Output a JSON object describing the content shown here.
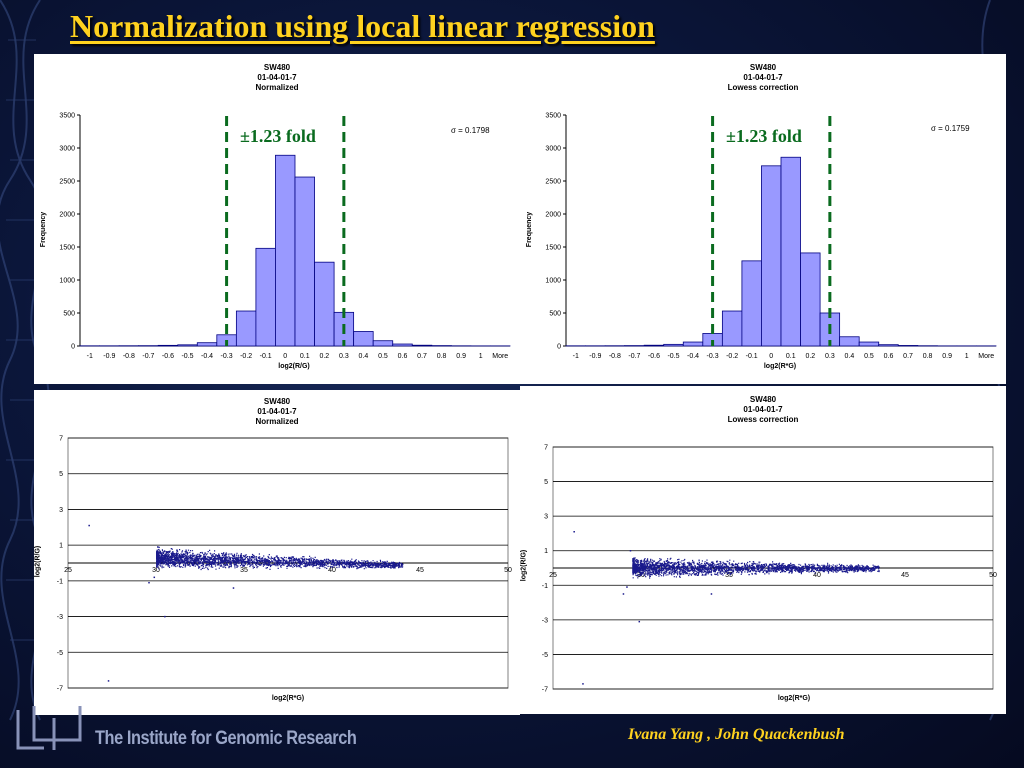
{
  "slide": {
    "title": "Normalization using local linear regression",
    "institute": "The Institute for Genomic Research",
    "authors": "Ivana Yang , John Quackenbush"
  },
  "colors": {
    "background": "#0b163a",
    "title": "#ffd21f",
    "bar_fill": "#9999ff",
    "bar_stroke": "#000080",
    "fold_line": "#0a6b1f",
    "point": "#1a1a8c"
  },
  "chart_data": [
    {
      "type": "bar",
      "title_lines": [
        "SW480",
        "01-04-01-7",
        "Normalized"
      ],
      "xlabel": "log2(R/G)",
      "ylabel": "Frequency",
      "categories": [
        "-1",
        "-0.9",
        "-0.8",
        "-0.7",
        "-0.6",
        "-0.5",
        "-0.4",
        "-0.3",
        "-0.2",
        "-0.1",
        "0",
        "0.1",
        "0.2",
        "0.3",
        "0.4",
        "0.5",
        "0.6",
        "0.7",
        "0.8",
        "0.9",
        "1",
        "More"
      ],
      "values": [
        3,
        3,
        4,
        5,
        10,
        18,
        50,
        170,
        530,
        1480,
        2890,
        2560,
        1270,
        510,
        220,
        80,
        30,
        12,
        6,
        3,
        2,
        2
      ],
      "ylim": [
        0,
        3500
      ],
      "yticks": [
        0,
        500,
        1000,
        1500,
        2000,
        2500,
        3000,
        3500
      ],
      "sigma_label": "σ = 0.1798",
      "annotation": "±1.23 fold",
      "fold_lines_x": [
        -0.3,
        0.3
      ],
      "grid": false
    },
    {
      "type": "bar",
      "title_lines": [
        "SW480",
        "01-04-01-7",
        "Lowess correction"
      ],
      "xlabel": "log2(R*G)",
      "ylabel": "Frequency",
      "categories": [
        "-1",
        "-0.9",
        "-0.8",
        "-0.7",
        "-0.6",
        "-0.5",
        "-0.4",
        "-0.3",
        "-0.2",
        "-0.1",
        "0",
        "0.1",
        "0.2",
        "0.3",
        "0.4",
        "0.5",
        "0.6",
        "0.7",
        "0.8",
        "0.9",
        "1",
        "More"
      ],
      "values": [
        3,
        3,
        4,
        6,
        12,
        25,
        60,
        190,
        530,
        1290,
        2730,
        2860,
        1410,
        500,
        140,
        60,
        20,
        8,
        4,
        2,
        2,
        2
      ],
      "ylim": [
        0,
        3500
      ],
      "yticks": [
        0,
        500,
        1000,
        1500,
        2000,
        2500,
        3000,
        3500
      ],
      "sigma_label": "σ = 0.1759",
      "annotation": "±1.23 fold",
      "fold_lines_x": [
        -0.3,
        0.3
      ],
      "grid": false
    },
    {
      "type": "scatter",
      "title_lines": [
        "SW480",
        "01-04-01-7",
        "Normalized"
      ],
      "xlabel": "log2(R*G)",
      "ylabel": "log2(R/G)",
      "xlim": [
        25,
        50
      ],
      "ylim": [
        -7,
        7
      ],
      "xticks": [
        25,
        30,
        35,
        40,
        45,
        50
      ],
      "yticks": [
        7,
        5,
        3,
        1,
        -1,
        -3,
        -5,
        -7
      ],
      "grid": true,
      "cloud": {
        "x_range": [
          30,
          44
        ],
        "mean_start": 0.3,
        "mean_end": -0.1,
        "spread_start": 0.35,
        "spread_end": 0.12
      },
      "outliers": [
        [
          26.2,
          2.1
        ],
        [
          27.3,
          -6.6
        ],
        [
          29.6,
          -1.1
        ],
        [
          30.5,
          -3.0
        ],
        [
          29.9,
          -0.8
        ],
        [
          34.4,
          -1.4
        ],
        [
          30.1,
          0.9
        ]
      ]
    },
    {
      "type": "scatter",
      "title_lines": [
        "SW480",
        "01-04-01-7",
        "Lowess correction"
      ],
      "xlabel": "log2(R*G)",
      "ylabel": "log2(R/G)",
      "xlim": [
        25,
        50
      ],
      "ylim": [
        -7,
        7
      ],
      "xticks": [
        25,
        30,
        35,
        40,
        45,
        50
      ],
      "yticks": [
        7,
        5,
        3,
        1,
        -1,
        -3,
        -5,
        -7
      ],
      "grid": true,
      "cloud": {
        "x_range": [
          29.5,
          43.5
        ],
        "mean_start": 0.05,
        "mean_end": 0.0,
        "spread_start": 0.35,
        "spread_end": 0.12
      },
      "outliers": [
        [
          26.2,
          2.1
        ],
        [
          26.7,
          -6.7
        ],
        [
          29.2,
          -1.1
        ],
        [
          29.9,
          -3.1
        ],
        [
          29.0,
          -1.5
        ],
        [
          34.0,
          -1.5
        ],
        [
          29.4,
          1.0
        ]
      ]
    }
  ]
}
